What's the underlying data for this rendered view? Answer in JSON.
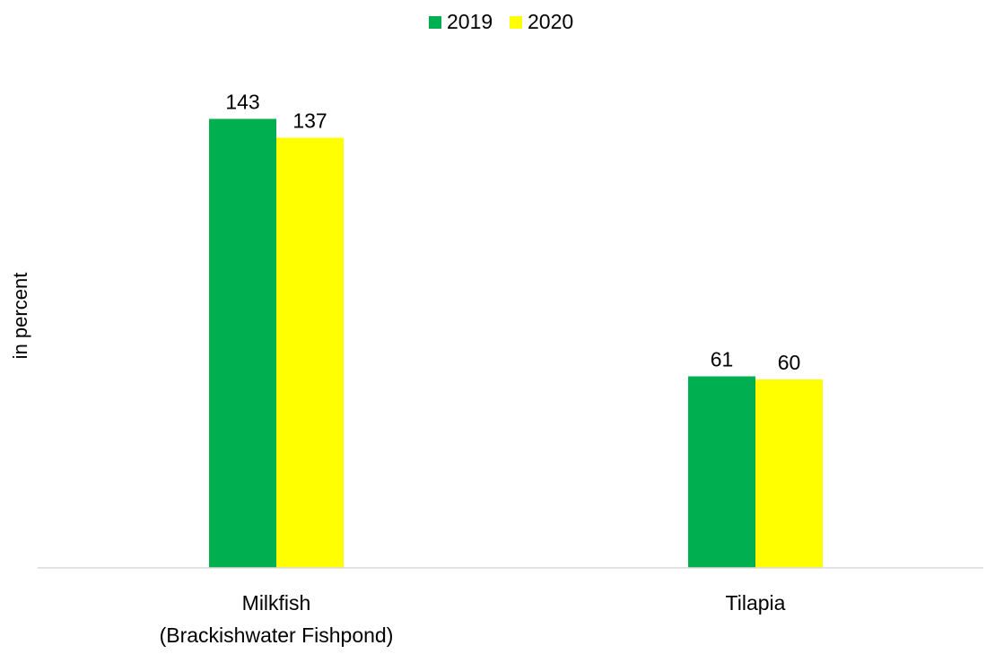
{
  "chart_data": {
    "type": "bar",
    "title": "",
    "xlabel": "",
    "ylabel": "in percent",
    "categories": [
      "Milkfish\n(Brackishwater Fishpond)",
      "Tilapia"
    ],
    "series": [
      {
        "name": "2019",
        "values": [
          143,
          61
        ],
        "color": "#00B050"
      },
      {
        "name": "2020",
        "values": [
          137,
          60
        ],
        "color": "#FFFF00"
      }
    ],
    "ylim": [
      0,
      160
    ],
    "grid": false,
    "legend": "top-center",
    "axis_color": "#D9D9D9"
  }
}
